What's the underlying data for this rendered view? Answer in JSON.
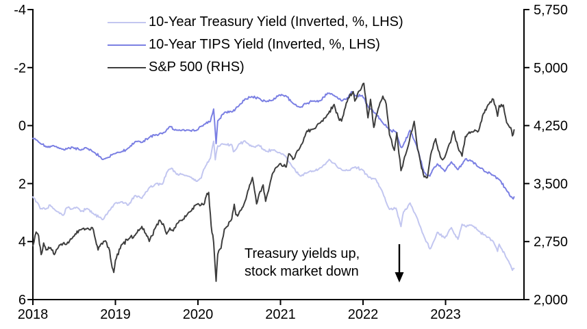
{
  "chart_data": {
    "type": "line",
    "title": "",
    "x_axis": {
      "domain": [
        2018,
        2023.95
      ],
      "tick_values": [
        2018,
        2019,
        2020,
        2021,
        2022,
        2023
      ],
      "tick_labels": [
        "2018",
        "2019",
        "2020",
        "2021",
        "2022",
        "2023"
      ]
    },
    "y_axis_left": {
      "top": -4,
      "bottom": 6,
      "tick_values": [
        -4,
        -2,
        0,
        2,
        4,
        6
      ],
      "tick_labels": [
        "-4",
        "-2",
        "0",
        "2",
        "4",
        "6"
      ],
      "note": "inverted yield axis, %"
    },
    "y_axis_right": {
      "top": 5750,
      "bottom": 2000,
      "tick_values": [
        5750,
        5000,
        4250,
        3500,
        2750,
        2000
      ],
      "tick_labels": [
        "5,750",
        "5,000",
        "4,250",
        "3,500",
        "2,750",
        "2,000"
      ]
    },
    "annotation": {
      "line1": "Treasury yields up,",
      "line2": "stock market down",
      "icon": "down-arrow"
    },
    "colors": {
      "treasury": "#c2c6f0",
      "tips": "#7a7fe3",
      "sp500": "#3d3d3d",
      "axis": "#000000"
    },
    "series": [
      {
        "name": "10-Year Treasury Yield (Inverted, %, LHS)",
        "axis": "left",
        "color": "#c2c6f0",
        "points": [
          [
            2018.0,
            2.46
          ],
          [
            2018.07,
            2.72
          ],
          [
            2018.09,
            2.87
          ],
          [
            2018.16,
            2.87
          ],
          [
            2018.21,
            2.74
          ],
          [
            2018.29,
            2.96
          ],
          [
            2018.37,
            3.09
          ],
          [
            2018.41,
            2.83
          ],
          [
            2018.49,
            2.86
          ],
          [
            2018.54,
            2.83
          ],
          [
            2018.58,
            2.96
          ],
          [
            2018.66,
            2.86
          ],
          [
            2018.74,
            3.06
          ],
          [
            2018.82,
            3.16
          ],
          [
            2018.85,
            3.24
          ],
          [
            2018.91,
            2.99
          ],
          [
            2018.99,
            2.69
          ],
          [
            2019.07,
            2.63
          ],
          [
            2019.12,
            2.66
          ],
          [
            2019.16,
            2.73
          ],
          [
            2019.24,
            2.41
          ],
          [
            2019.32,
            2.51
          ],
          [
            2019.41,
            2.14
          ],
          [
            2019.49,
            2.0
          ],
          [
            2019.57,
            2.02
          ],
          [
            2019.62,
            1.63
          ],
          [
            2019.66,
            1.5
          ],
          [
            2019.68,
            1.47
          ],
          [
            2019.74,
            1.68
          ],
          [
            2019.82,
            1.69
          ],
          [
            2019.91,
            1.78
          ],
          [
            2019.99,
            1.92
          ],
          [
            2020.04,
            1.81
          ],
          [
            2020.07,
            1.51
          ],
          [
            2020.15,
            1.13
          ],
          [
            2020.19,
            0.54
          ],
          [
            2020.21,
            1.18
          ],
          [
            2020.24,
            0.7
          ],
          [
            2020.32,
            0.64
          ],
          [
            2020.41,
            0.66
          ],
          [
            2020.43,
            0.9
          ],
          [
            2020.49,
            0.66
          ],
          [
            2020.57,
            0.53
          ],
          [
            2020.65,
            0.72
          ],
          [
            2020.74,
            0.68
          ],
          [
            2020.82,
            0.88
          ],
          [
            2020.9,
            0.84
          ],
          [
            2020.99,
            0.93
          ],
          [
            2021.07,
            1.09
          ],
          [
            2021.15,
            1.44
          ],
          [
            2021.24,
            1.74
          ],
          [
            2021.32,
            1.63
          ],
          [
            2021.4,
            1.58
          ],
          [
            2021.49,
            1.45
          ],
          [
            2021.57,
            1.24
          ],
          [
            2021.6,
            1.19
          ],
          [
            2021.65,
            1.3
          ],
          [
            2021.74,
            1.52
          ],
          [
            2021.82,
            1.55
          ],
          [
            2021.9,
            1.43
          ],
          [
            2021.99,
            1.52
          ],
          [
            2022.07,
            1.79
          ],
          [
            2022.15,
            1.83
          ],
          [
            2022.24,
            2.32
          ],
          [
            2022.32,
            2.89
          ],
          [
            2022.4,
            2.85
          ],
          [
            2022.46,
            3.48
          ],
          [
            2022.49,
            2.98
          ],
          [
            2022.57,
            2.67
          ],
          [
            2022.65,
            3.15
          ],
          [
            2022.74,
            3.83
          ],
          [
            2022.81,
            4.25
          ],
          [
            2022.84,
            4.1
          ],
          [
            2022.9,
            3.68
          ],
          [
            2022.99,
            3.88
          ],
          [
            2023.07,
            3.52
          ],
          [
            2023.15,
            3.92
          ],
          [
            2023.2,
            3.4
          ],
          [
            2023.24,
            3.48
          ],
          [
            2023.32,
            3.44
          ],
          [
            2023.4,
            3.64
          ],
          [
            2023.49,
            3.81
          ],
          [
            2023.57,
            3.97
          ],
          [
            2023.63,
            4.34
          ],
          [
            2023.65,
            4.09
          ],
          [
            2023.74,
            4.57
          ],
          [
            2023.81,
            4.99
          ],
          [
            2023.83,
            4.93
          ]
        ]
      },
      {
        "name": "10-Year TIPS Yield (Inverted, %, LHS)",
        "axis": "left",
        "color": "#7a7fe3",
        "points": [
          [
            2018.0,
            0.44
          ],
          [
            2018.07,
            0.57
          ],
          [
            2018.16,
            0.74
          ],
          [
            2018.24,
            0.69
          ],
          [
            2018.32,
            0.79
          ],
          [
            2018.41,
            0.81
          ],
          [
            2018.49,
            0.76
          ],
          [
            2018.57,
            0.84
          ],
          [
            2018.65,
            0.77
          ],
          [
            2018.74,
            0.92
          ],
          [
            2018.82,
            1.08
          ],
          [
            2018.85,
            1.17
          ],
          [
            2018.91,
            1.1
          ],
          [
            2018.99,
            0.97
          ],
          [
            2019.07,
            0.91
          ],
          [
            2019.16,
            0.77
          ],
          [
            2019.24,
            0.55
          ],
          [
            2019.32,
            0.58
          ],
          [
            2019.41,
            0.41
          ],
          [
            2019.49,
            0.31
          ],
          [
            2019.57,
            0.28
          ],
          [
            2019.66,
            0.03
          ],
          [
            2019.74,
            0.16
          ],
          [
            2019.82,
            0.14
          ],
          [
            2019.91,
            0.18
          ],
          [
            2019.99,
            0.15
          ],
          [
            2020.07,
            -0.03
          ],
          [
            2020.15,
            -0.14
          ],
          [
            2020.19,
            -0.57
          ],
          [
            2020.22,
            0.62
          ],
          [
            2020.24,
            -0.17
          ],
          [
            2020.32,
            -0.45
          ],
          [
            2020.41,
            -0.47
          ],
          [
            2020.49,
            -0.66
          ],
          [
            2020.57,
            -0.92
          ],
          [
            2020.65,
            -1.0
          ],
          [
            2020.74,
            -0.94
          ],
          [
            2020.82,
            -0.83
          ],
          [
            2020.9,
            -0.87
          ],
          [
            2020.99,
            -1.06
          ],
          [
            2021.07,
            -1.02
          ],
          [
            2021.15,
            -0.77
          ],
          [
            2021.24,
            -0.63
          ],
          [
            2021.32,
            -0.77
          ],
          [
            2021.4,
            -0.84
          ],
          [
            2021.49,
            -0.87
          ],
          [
            2021.57,
            -1.12
          ],
          [
            2021.65,
            -1.04
          ],
          [
            2021.74,
            -0.85
          ],
          [
            2021.82,
            -0.96
          ],
          [
            2021.86,
            -1.17
          ],
          [
            2021.9,
            -1.04
          ],
          [
            2021.99,
            -1.04
          ],
          [
            2022.07,
            -0.61
          ],
          [
            2022.15,
            -0.43
          ],
          [
            2022.24,
            -0.09
          ],
          [
            2022.32,
            0.14
          ],
          [
            2022.4,
            0.22
          ],
          [
            2022.46,
            0.75
          ],
          [
            2022.49,
            0.65
          ],
          [
            2022.57,
            0.16
          ],
          [
            2022.65,
            0.7
          ],
          [
            2022.74,
            1.62
          ],
          [
            2022.81,
            1.74
          ],
          [
            2022.84,
            1.54
          ],
          [
            2022.9,
            1.32
          ],
          [
            2022.99,
            1.58
          ],
          [
            2023.07,
            1.25
          ],
          [
            2023.15,
            1.52
          ],
          [
            2023.24,
            1.15
          ],
          [
            2023.32,
            1.22
          ],
          [
            2023.4,
            1.43
          ],
          [
            2023.49,
            1.6
          ],
          [
            2023.57,
            1.7
          ],
          [
            2023.65,
            1.86
          ],
          [
            2023.74,
            2.24
          ],
          [
            2023.81,
            2.5
          ],
          [
            2023.83,
            2.46
          ]
        ]
      },
      {
        "name": "S&P 500 (RHS)",
        "axis": "right",
        "color": "#3d3d3d",
        "points": [
          [
            2018.0,
            2696
          ],
          [
            2018.04,
            2873
          ],
          [
            2018.07,
            2824
          ],
          [
            2018.1,
            2581
          ],
          [
            2018.13,
            2732
          ],
          [
            2018.16,
            2641
          ],
          [
            2018.19,
            2678
          ],
          [
            2018.24,
            2641
          ],
          [
            2018.26,
            2582
          ],
          [
            2018.32,
            2705
          ],
          [
            2018.41,
            2718
          ],
          [
            2018.49,
            2816
          ],
          [
            2018.57,
            2902
          ],
          [
            2018.65,
            2914
          ],
          [
            2018.72,
            2931
          ],
          [
            2018.76,
            2768
          ],
          [
            2018.79,
            2641
          ],
          [
            2018.82,
            2712
          ],
          [
            2018.88,
            2760
          ],
          [
            2018.93,
            2633
          ],
          [
            2018.96,
            2416
          ],
          [
            2018.98,
            2351
          ],
          [
            2019.0,
            2507
          ],
          [
            2019.07,
            2704
          ],
          [
            2019.16,
            2784
          ],
          [
            2019.24,
            2834
          ],
          [
            2019.32,
            2946
          ],
          [
            2019.38,
            2822
          ],
          [
            2019.41,
            2752
          ],
          [
            2019.49,
            2942
          ],
          [
            2019.54,
            3026
          ],
          [
            2019.58,
            2980
          ],
          [
            2019.62,
            2847
          ],
          [
            2019.66,
            2926
          ],
          [
            2019.7,
            2888
          ],
          [
            2019.74,
            2977
          ],
          [
            2019.82,
            3038
          ],
          [
            2019.91,
            3141
          ],
          [
            2019.99,
            3231
          ],
          [
            2020.07,
            3226
          ],
          [
            2020.1,
            3338
          ],
          [
            2020.13,
            3386
          ],
          [
            2020.16,
            2954
          ],
          [
            2020.19,
            2741
          ],
          [
            2020.22,
            2237
          ],
          [
            2020.24,
            2585
          ],
          [
            2020.28,
            2663
          ],
          [
            2020.32,
            2912
          ],
          [
            2020.41,
            3044
          ],
          [
            2020.44,
            3233
          ],
          [
            2020.46,
            3098
          ],
          [
            2020.49,
            3100
          ],
          [
            2020.57,
            3271
          ],
          [
            2020.66,
            3580
          ],
          [
            2020.71,
            3237
          ],
          [
            2020.74,
            3363
          ],
          [
            2020.79,
            3483
          ],
          [
            2020.82,
            3270
          ],
          [
            2020.9,
            3622
          ],
          [
            2020.99,
            3756
          ],
          [
            2021.07,
            3714
          ],
          [
            2021.1,
            3886
          ],
          [
            2021.15,
            3811
          ],
          [
            2021.24,
            3973
          ],
          [
            2021.32,
            4181
          ],
          [
            2021.4,
            4204
          ],
          [
            2021.49,
            4298
          ],
          [
            2021.57,
            4395
          ],
          [
            2021.65,
            4523
          ],
          [
            2021.7,
            4357
          ],
          [
            2021.74,
            4308
          ],
          [
            2021.82,
            4605
          ],
          [
            2021.88,
            4690
          ],
          [
            2021.9,
            4567
          ],
          [
            2021.99,
            4766
          ],
          [
            2022.01,
            4797
          ],
          [
            2022.06,
            4350
          ],
          [
            2022.09,
            4589
          ],
          [
            2022.13,
            4226
          ],
          [
            2022.16,
            4374
          ],
          [
            2022.24,
            4631
          ],
          [
            2022.28,
            4530
          ],
          [
            2022.32,
            4132
          ],
          [
            2022.38,
            3930
          ],
          [
            2022.41,
            4158
          ],
          [
            2022.46,
            3667
          ],
          [
            2022.49,
            3785
          ],
          [
            2022.54,
            3961
          ],
          [
            2022.62,
            4305
          ],
          [
            2022.66,
            3955
          ],
          [
            2022.71,
            3693
          ],
          [
            2022.74,
            3586
          ],
          [
            2022.78,
            3577
          ],
          [
            2022.82,
            3872
          ],
          [
            2022.88,
            4080
          ],
          [
            2022.91,
            3934
          ],
          [
            2022.95,
            3822
          ],
          [
            2022.99,
            3840
          ],
          [
            2023.04,
            3999
          ],
          [
            2023.07,
            4077
          ],
          [
            2023.1,
            4179
          ],
          [
            2023.15,
            3970
          ],
          [
            2023.2,
            3855
          ],
          [
            2023.24,
            4109
          ],
          [
            2023.32,
            4169
          ],
          [
            2023.4,
            4180
          ],
          [
            2023.46,
            4410
          ],
          [
            2023.49,
            4450
          ],
          [
            2023.54,
            4556
          ],
          [
            2023.58,
            4589
          ],
          [
            2023.63,
            4370
          ],
          [
            2023.65,
            4508
          ],
          [
            2023.7,
            4515
          ],
          [
            2023.74,
            4288
          ],
          [
            2023.79,
            4224
          ],
          [
            2023.81,
            4117
          ],
          [
            2023.83,
            4194
          ]
        ]
      }
    ],
    "legend_position": "top-center-inside",
    "grid": false
  }
}
